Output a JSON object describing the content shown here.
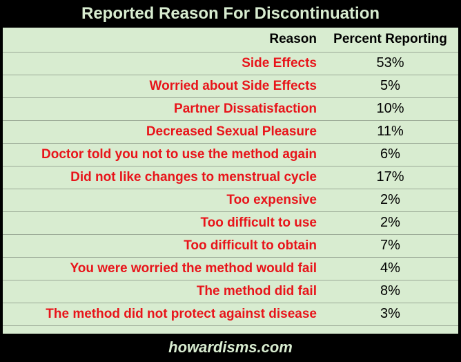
{
  "title": "Reported Reason For Discontinuation",
  "footer": "howardisms.com",
  "colors": {
    "background": "#000000",
    "table_bg": "#d8ecd0",
    "reason_text": "#e8141a"
  },
  "chart_data": {
    "type": "table",
    "title": "Reported Reason For Discontinuation",
    "columns": [
      "Reason",
      "Percent Reporting"
    ],
    "rows": [
      {
        "reason": "Side Effects",
        "percent": "53%"
      },
      {
        "reason": "Worried about Side Effects",
        "percent": "5%"
      },
      {
        "reason": "Partner Dissatisfaction",
        "percent": "10%"
      },
      {
        "reason": "Decreased Sexual Pleasure",
        "percent": "11%"
      },
      {
        "reason": "Doctor told you not to use the method again",
        "percent": "6%"
      },
      {
        "reason": "Did not like changes to menstrual cycle",
        "percent": "17%"
      },
      {
        "reason": "Too expensive",
        "percent": "2%"
      },
      {
        "reason": "Too difficult to use",
        "percent": "2%"
      },
      {
        "reason": "Too difficult to obtain",
        "percent": "7%"
      },
      {
        "reason": "You were worried the method would fail",
        "percent": "4%"
      },
      {
        "reason": "The method did fail",
        "percent": "8%"
      },
      {
        "reason": "The method did not protect against disease",
        "percent": "3%"
      }
    ]
  }
}
